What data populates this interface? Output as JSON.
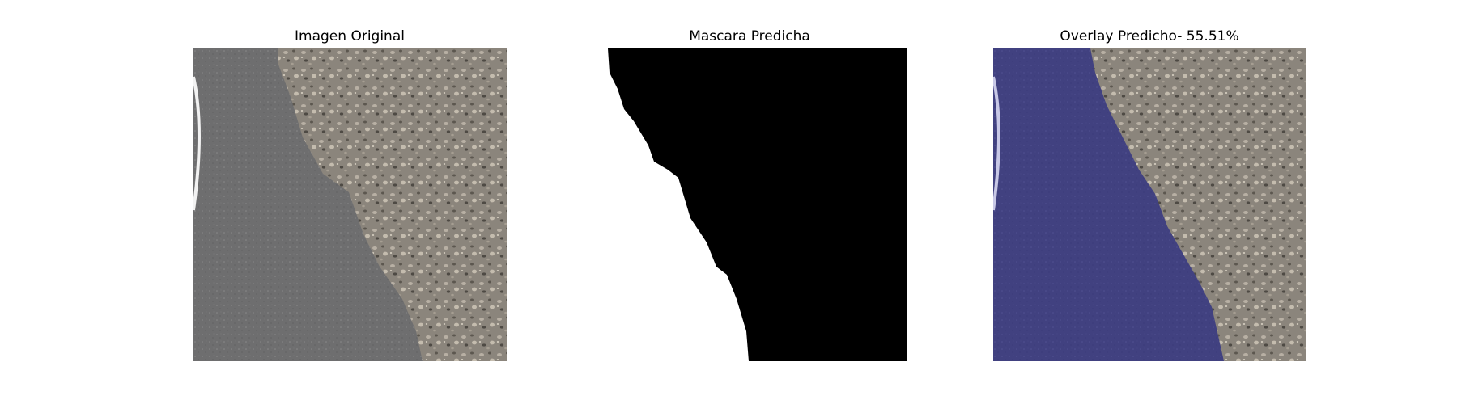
{
  "panels": [
    {
      "title": "Imagen Original"
    },
    {
      "title": "Mascara Predicha"
    },
    {
      "title": "Overlay Predicho- 55.51%"
    }
  ],
  "colors": {
    "asphalt": "#6e6e6f",
    "aggregate": "#8b857c",
    "mask_background": "#000000",
    "mask_foreground": "#ffffff",
    "overlay_tint": "#3a3a8c"
  }
}
